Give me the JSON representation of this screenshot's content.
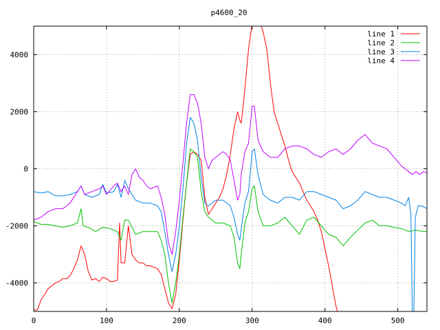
{
  "chart_data": {
    "type": "line",
    "title": "p4600_20",
    "xlabel": "",
    "ylabel": "",
    "xlim": [
      0,
      540
    ],
    "ylim": [
      -5000,
      5000
    ],
    "x_ticks": [
      0,
      100,
      200,
      300,
      400,
      500
    ],
    "y_ticks": [
      -4000,
      -2000,
      0,
      2000,
      4000
    ],
    "grid": true,
    "legend_position": "top-right",
    "series": [
      {
        "name": "line 1",
        "color": "#ff0000",
        "points": [
          [
            0,
            -4950
          ],
          [
            5,
            -4950
          ],
          [
            10,
            -4600
          ],
          [
            15,
            -4400
          ],
          [
            20,
            -4200
          ],
          [
            25,
            -4100
          ],
          [
            30,
            -4000
          ],
          [
            35,
            -3950
          ],
          [
            40,
            -3850
          ],
          [
            45,
            -3850
          ],
          [
            50,
            -3750
          ],
          [
            55,
            -3500
          ],
          [
            60,
            -3200
          ],
          [
            65,
            -2700
          ],
          [
            70,
            -3000
          ],
          [
            75,
            -3600
          ],
          [
            80,
            -3900
          ],
          [
            85,
            -3850
          ],
          [
            90,
            -3950
          ],
          [
            95,
            -3800
          ],
          [
            100,
            -3850
          ],
          [
            105,
            -3950
          ],
          [
            110,
            -3950
          ],
          [
            115,
            -3900
          ],
          [
            118,
            -1900
          ],
          [
            120,
            -3300
          ],
          [
            125,
            -3300
          ],
          [
            130,
            -2000
          ],
          [
            135,
            -3000
          ],
          [
            140,
            -3200
          ],
          [
            145,
            -3300
          ],
          [
            150,
            -3300
          ],
          [
            155,
            -3400
          ],
          [
            160,
            -3400
          ],
          [
            165,
            -3450
          ],
          [
            170,
            -3500
          ],
          [
            175,
            -3700
          ],
          [
            180,
            -4200
          ],
          [
            185,
            -4700
          ],
          [
            190,
            -4900
          ],
          [
            195,
            -4400
          ],
          [
            200,
            -3200
          ],
          [
            205,
            -1800
          ],
          [
            210,
            -500
          ],
          [
            215,
            500
          ],
          [
            220,
            600
          ],
          [
            225,
            500
          ],
          [
            230,
            300
          ],
          [
            235,
            -1000
          ],
          [
            240,
            -1600
          ],
          [
            245,
            -1400
          ],
          [
            250,
            -1200
          ],
          [
            255,
            -1000
          ],
          [
            260,
            -700
          ],
          [
            265,
            -200
          ],
          [
            270,
            500
          ],
          [
            275,
            1400
          ],
          [
            280,
            2000
          ],
          [
            283,
            1700
          ],
          [
            285,
            1600
          ],
          [
            290,
            2800
          ],
          [
            295,
            4200
          ],
          [
            300,
            5100
          ],
          [
            305,
            5300
          ],
          [
            310,
            5200
          ],
          [
            315,
            4800
          ],
          [
            320,
            4200
          ],
          [
            325,
            3000
          ],
          [
            330,
            2000
          ],
          [
            335,
            1600
          ],
          [
            340,
            1200
          ],
          [
            345,
            800
          ],
          [
            350,
            300
          ],
          [
            355,
            -100
          ],
          [
            360,
            -300
          ],
          [
            365,
            -500
          ],
          [
            370,
            -800
          ],
          [
            375,
            -1100
          ],
          [
            380,
            -1300
          ],
          [
            385,
            -1500
          ],
          [
            390,
            -1800
          ],
          [
            395,
            -2200
          ],
          [
            400,
            -2800
          ],
          [
            405,
            -3400
          ],
          [
            410,
            -4100
          ],
          [
            415,
            -4800
          ],
          [
            418,
            -5100
          ]
        ]
      },
      {
        "name": "line 2",
        "color": "#00c000",
        "points": [
          [
            0,
            -1850
          ],
          [
            10,
            -1950
          ],
          [
            20,
            -1950
          ],
          [
            30,
            -2000
          ],
          [
            40,
            -2050
          ],
          [
            50,
            -2000
          ],
          [
            60,
            -1900
          ],
          [
            65,
            -1400
          ],
          [
            68,
            -2000
          ],
          [
            75,
            -2050
          ],
          [
            85,
            -2200
          ],
          [
            95,
            -2050
          ],
          [
            105,
            -2100
          ],
          [
            115,
            -2200
          ],
          [
            120,
            -2500
          ],
          [
            125,
            -1800
          ],
          [
            130,
            -1800
          ],
          [
            140,
            -2300
          ],
          [
            150,
            -2200
          ],
          [
            160,
            -2200
          ],
          [
            170,
            -2200
          ],
          [
            175,
            -2500
          ],
          [
            180,
            -3000
          ],
          [
            185,
            -4000
          ],
          [
            190,
            -4700
          ],
          [
            195,
            -4000
          ],
          [
            200,
            -3000
          ],
          [
            205,
            -1700
          ],
          [
            210,
            -500
          ],
          [
            215,
            700
          ],
          [
            220,
            600
          ],
          [
            225,
            400
          ],
          [
            230,
            -800
          ],
          [
            235,
            -1500
          ],
          [
            240,
            -1700
          ],
          [
            250,
            -1900
          ],
          [
            260,
            -1900
          ],
          [
            270,
            -2000
          ],
          [
            275,
            -2400
          ],
          [
            280,
            -3300
          ],
          [
            283,
            -3500
          ],
          [
            285,
            -3000
          ],
          [
            290,
            -1900
          ],
          [
            295,
            -1500
          ],
          [
            300,
            -700
          ],
          [
            303,
            -600
          ],
          [
            308,
            -1500
          ],
          [
            315,
            -2000
          ],
          [
            325,
            -2000
          ],
          [
            335,
            -1900
          ],
          [
            345,
            -1700
          ],
          [
            355,
            -2000
          ],
          [
            365,
            -2300
          ],
          [
            375,
            -1800
          ],
          [
            385,
            -1700
          ],
          [
            395,
            -2000
          ],
          [
            405,
            -2300
          ],
          [
            415,
            -2400
          ],
          [
            425,
            -2700
          ],
          [
            435,
            -2400
          ],
          [
            445,
            -2150
          ],
          [
            455,
            -1900
          ],
          [
            465,
            -1800
          ],
          [
            475,
            -2000
          ],
          [
            485,
            -2000
          ],
          [
            495,
            -2050
          ],
          [
            505,
            -2100
          ],
          [
            515,
            -2200
          ],
          [
            525,
            -2150
          ],
          [
            535,
            -2200
          ],
          [
            540,
            -2200
          ]
        ]
      },
      {
        "name": "line 3",
        "color": "#0080e0",
        "points": [
          [
            0,
            -800
          ],
          [
            10,
            -850
          ],
          [
            20,
            -800
          ],
          [
            30,
            -950
          ],
          [
            40,
            -950
          ],
          [
            50,
            -900
          ],
          [
            60,
            -800
          ],
          [
            65,
            -600
          ],
          [
            70,
            -900
          ],
          [
            80,
            -1000
          ],
          [
            90,
            -900
          ],
          [
            95,
            -550
          ],
          [
            100,
            -850
          ],
          [
            110,
            -800
          ],
          [
            115,
            -550
          ],
          [
            120,
            -1000
          ],
          [
            125,
            -400
          ],
          [
            130,
            -700
          ],
          [
            140,
            -1100
          ],
          [
            150,
            -1200
          ],
          [
            160,
            -1200
          ],
          [
            170,
            -1300
          ],
          [
            175,
            -1500
          ],
          [
            180,
            -2200
          ],
          [
            185,
            -3000
          ],
          [
            190,
            -3600
          ],
          [
            195,
            -3000
          ],
          [
            200,
            -2000
          ],
          [
            205,
            -700
          ],
          [
            210,
            900
          ],
          [
            215,
            1800
          ],
          [
            220,
            1600
          ],
          [
            225,
            1000
          ],
          [
            230,
            -300
          ],
          [
            235,
            -1200
          ],
          [
            240,
            -1300
          ],
          [
            250,
            -1100
          ],
          [
            260,
            -1100
          ],
          [
            270,
            -1300
          ],
          [
            275,
            -1700
          ],
          [
            280,
            -2300
          ],
          [
            283,
            -2500
          ],
          [
            285,
            -2100
          ],
          [
            290,
            -1200
          ],
          [
            295,
            -800
          ],
          [
            300,
            600
          ],
          [
            303,
            700
          ],
          [
            308,
            -200
          ],
          [
            315,
            -900
          ],
          [
            325,
            -1100
          ],
          [
            335,
            -1200
          ],
          [
            345,
            -1000
          ],
          [
            355,
            -1000
          ],
          [
            365,
            -1100
          ],
          [
            375,
            -800
          ],
          [
            385,
            -800
          ],
          [
            395,
            -900
          ],
          [
            405,
            -1000
          ],
          [
            415,
            -1100
          ],
          [
            425,
            -1400
          ],
          [
            435,
            -1300
          ],
          [
            445,
            -1100
          ],
          [
            455,
            -800
          ],
          [
            465,
            -900
          ],
          [
            475,
            -1000
          ],
          [
            485,
            -1000
          ],
          [
            495,
            -1100
          ],
          [
            505,
            -1200
          ],
          [
            510,
            -1300
          ],
          [
            515,
            -1000
          ],
          [
            518,
            -1600
          ],
          [
            520,
            -5100
          ],
          [
            522,
            -5100
          ],
          [
            524,
            -1700
          ],
          [
            528,
            -1300
          ],
          [
            533,
            -1300
          ],
          [
            540,
            -1400
          ]
        ]
      },
      {
        "name": "line 4",
        "color": "#c000ff",
        "points": [
          [
            0,
            -1800
          ],
          [
            10,
            -1700
          ],
          [
            20,
            -1500
          ],
          [
            30,
            -1400
          ],
          [
            40,
            -1400
          ],
          [
            50,
            -1200
          ],
          [
            60,
            -800
          ],
          [
            65,
            -600
          ],
          [
            70,
            -900
          ],
          [
            80,
            -800
          ],
          [
            90,
            -700
          ],
          [
            95,
            -600
          ],
          [
            100,
            -900
          ],
          [
            110,
            -600
          ],
          [
            115,
            -500
          ],
          [
            120,
            -800
          ],
          [
            125,
            -600
          ],
          [
            130,
            -900
          ],
          [
            135,
            -200
          ],
          [
            140,
            0
          ],
          [
            145,
            -300
          ],
          [
            150,
            -400
          ],
          [
            155,
            -600
          ],
          [
            160,
            -700
          ],
          [
            170,
            -600
          ],
          [
            175,
            -1000
          ],
          [
            180,
            -1600
          ],
          [
            185,
            -2600
          ],
          [
            190,
            -3000
          ],
          [
            195,
            -2200
          ],
          [
            200,
            -1100
          ],
          [
            205,
            200
          ],
          [
            210,
            1600
          ],
          [
            215,
            2600
          ],
          [
            220,
            2600
          ],
          [
            225,
            2300
          ],
          [
            230,
            1600
          ],
          [
            235,
            400
          ],
          [
            240,
            0
          ],
          [
            245,
            300
          ],
          [
            250,
            400
          ],
          [
            260,
            600
          ],
          [
            265,
            500
          ],
          [
            270,
            300
          ],
          [
            275,
            -400
          ],
          [
            280,
            -1100
          ],
          [
            283,
            -900
          ],
          [
            285,
            -200
          ],
          [
            290,
            600
          ],
          [
            295,
            900
          ],
          [
            300,
            2200
          ],
          [
            303,
            2200
          ],
          [
            308,
            1000
          ],
          [
            315,
            600
          ],
          [
            325,
            400
          ],
          [
            335,
            400
          ],
          [
            345,
            700
          ],
          [
            355,
            800
          ],
          [
            365,
            800
          ],
          [
            375,
            700
          ],
          [
            385,
            500
          ],
          [
            395,
            400
          ],
          [
            405,
            600
          ],
          [
            415,
            700
          ],
          [
            425,
            500
          ],
          [
            435,
            700
          ],
          [
            445,
            1000
          ],
          [
            455,
            1200
          ],
          [
            465,
            900
          ],
          [
            475,
            800
          ],
          [
            485,
            700
          ],
          [
            495,
            400
          ],
          [
            505,
            100
          ],
          [
            515,
            -100
          ],
          [
            520,
            -200
          ],
          [
            525,
            -100
          ],
          [
            530,
            -200
          ],
          [
            535,
            -100
          ],
          [
            540,
            -150
          ]
        ]
      }
    ]
  }
}
